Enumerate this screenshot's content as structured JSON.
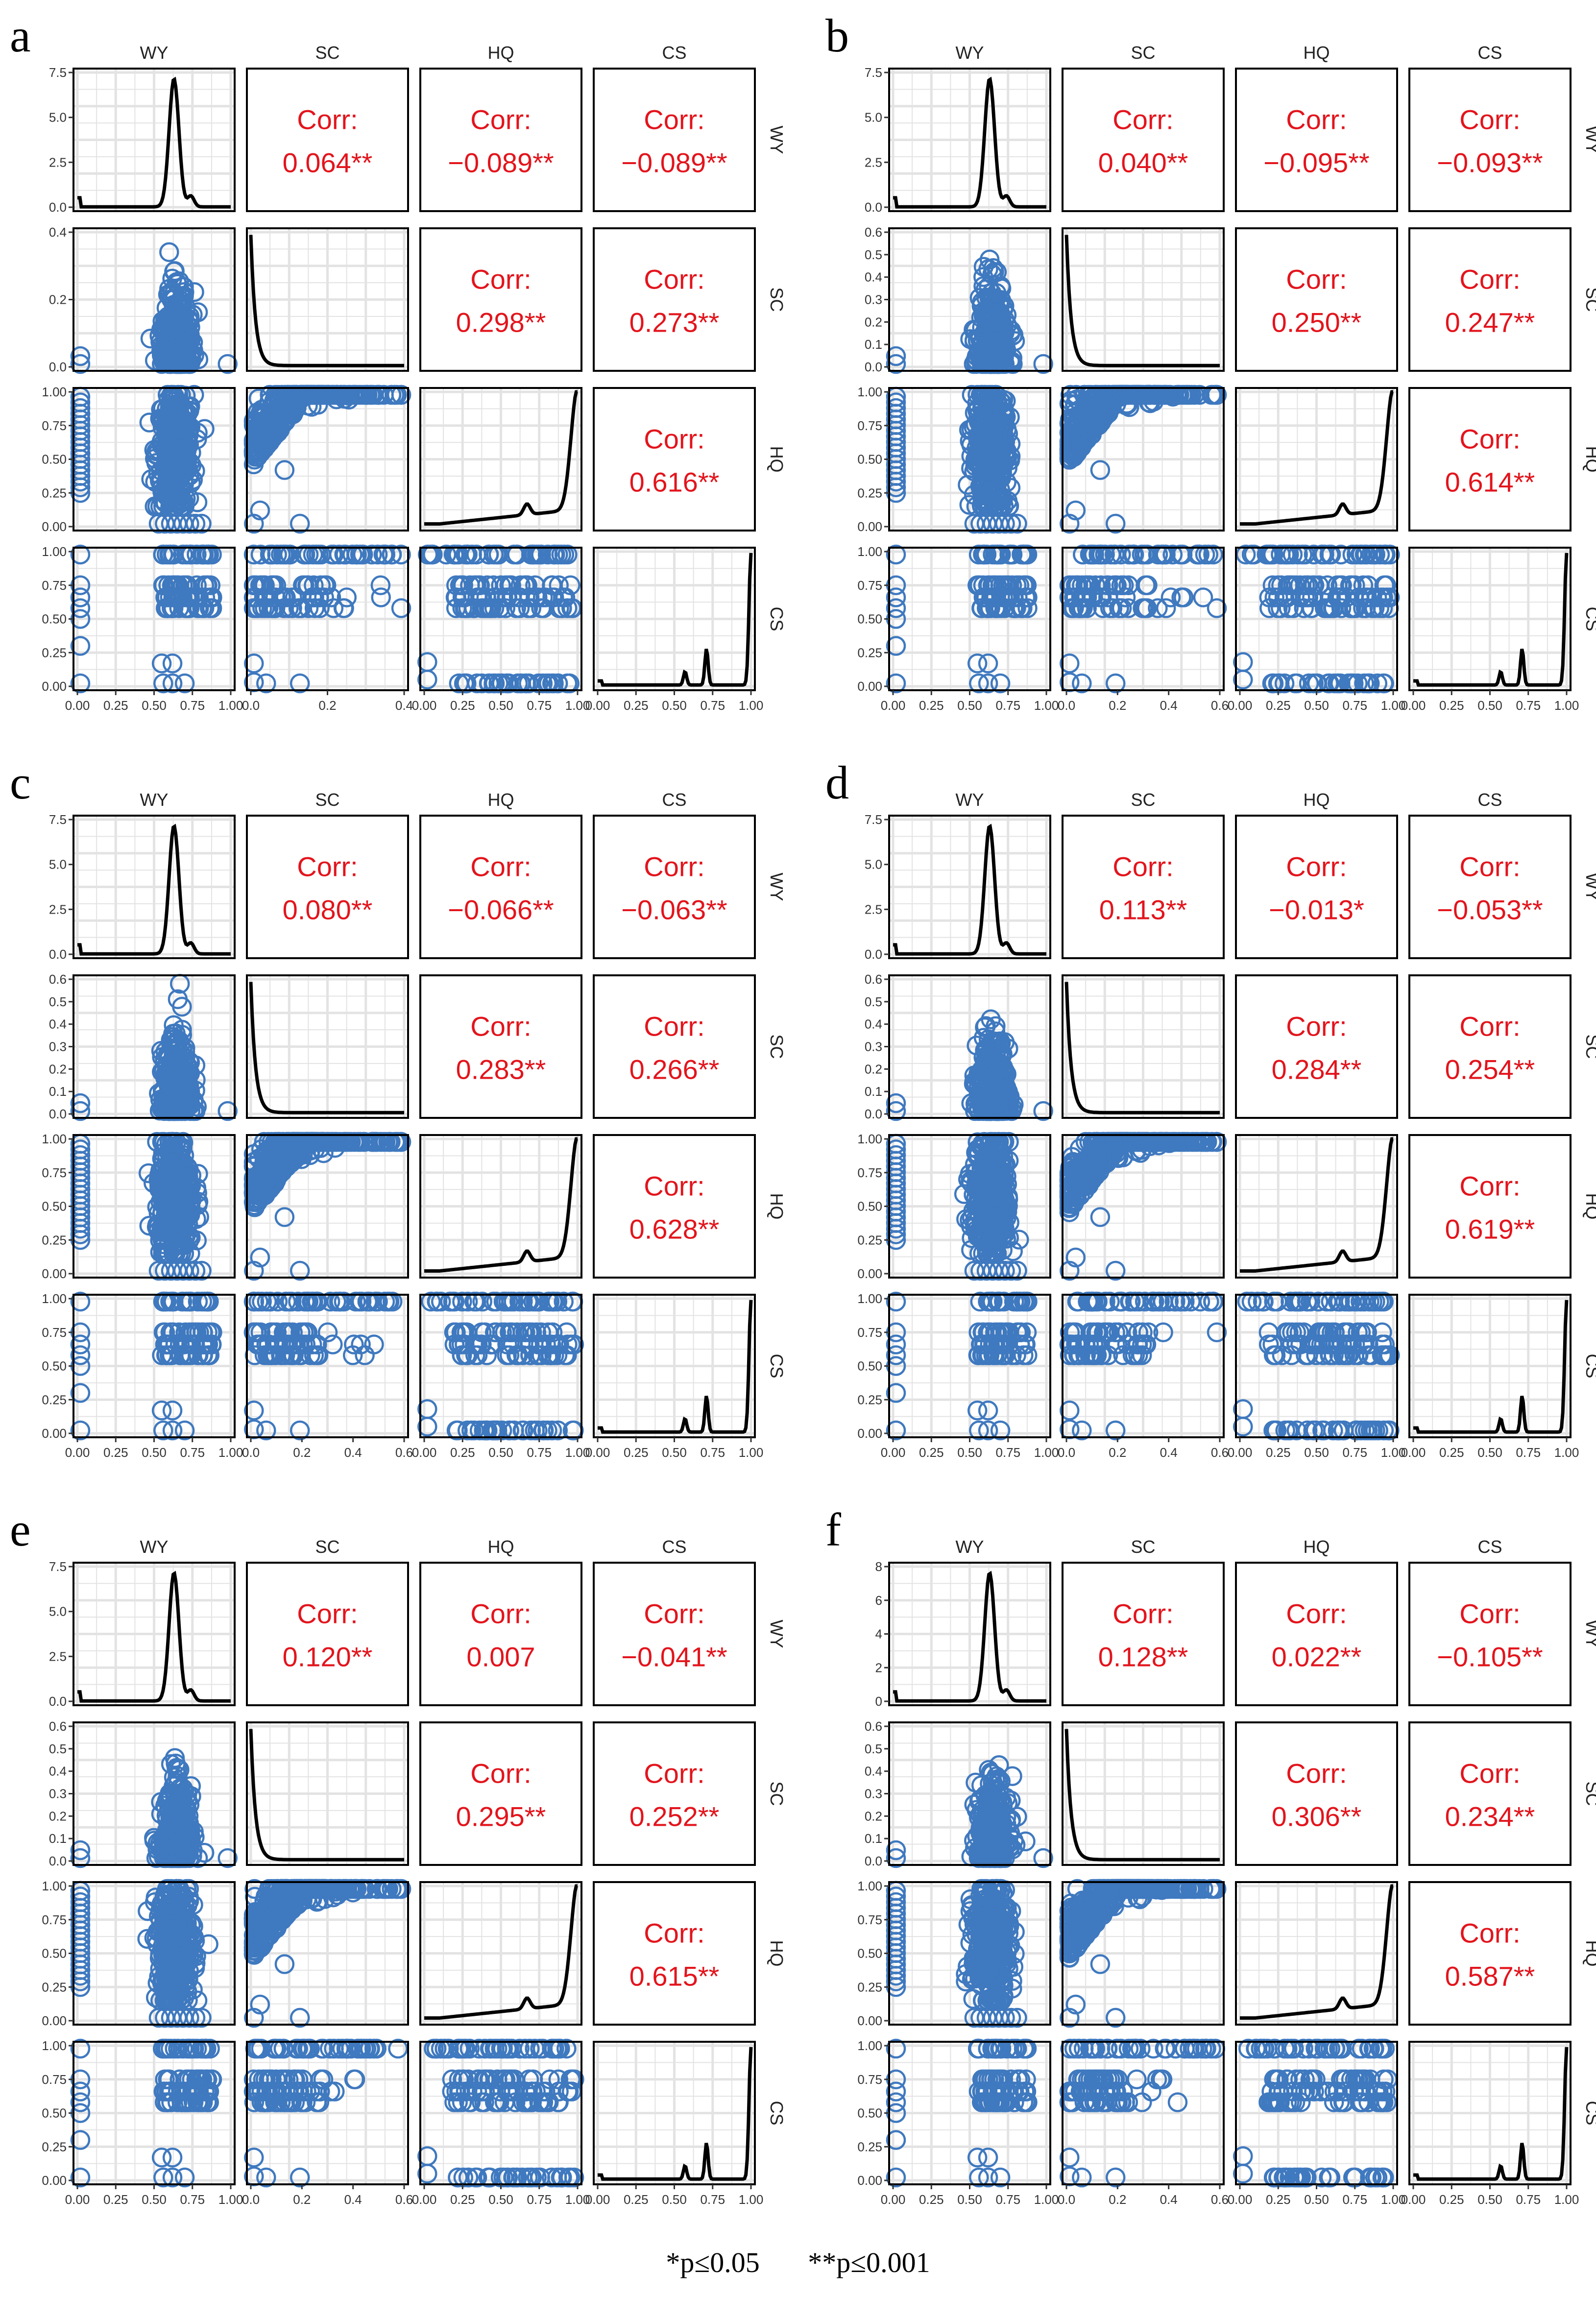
{
  "chart_data": {
    "type": "scatter",
    "variables": [
      "WY",
      "SC",
      "HQ",
      "CS"
    ],
    "corr_label": "Corr:",
    "colors": {
      "points": "#3F79BF",
      "density": "#000000",
      "corr_text": "#E3141C",
      "grid": "#E3E3E3"
    },
    "grid": true,
    "axis_ticks": {
      "WY_y": [
        "0.0",
        "2.5",
        "5.0",
        "7.5"
      ],
      "WY_y_f": [
        "0",
        "2",
        "4",
        "6",
        "8"
      ],
      "unit_y": [
        "0.00",
        "0.25",
        "0.50",
        "0.75",
        "1.00"
      ],
      "unit_x": [
        "0.00",
        "0.25",
        "0.50",
        "0.75",
        "1.00"
      ]
    },
    "panels": [
      {
        "id": "a",
        "sc_y": [
          "0.0",
          "0.2",
          "0.4"
        ],
        "sc_x": [
          "0.0",
          "0.2",
          "0.4"
        ],
        "corr": {
          "WY-SC": "0.064**",
          "WY-HQ": "−0.089**",
          "WY-CS": "−0.089**",
          "SC-HQ": "0.298**",
          "SC-CS": "0.273**",
          "HQ-CS": "0.616**"
        }
      },
      {
        "id": "b",
        "sc_y": [
          "0.0",
          "0.1",
          "0.2",
          "0.3",
          "0.4",
          "0.5",
          "0.6"
        ],
        "sc_x": [
          "0.0",
          "0.2",
          "0.4",
          "0.6"
        ],
        "corr": {
          "WY-SC": "0.040**",
          "WY-HQ": "−0.095**",
          "WY-CS": "−0.093**",
          "SC-HQ": "0.250**",
          "SC-CS": "0.247**",
          "HQ-CS": "0.614**"
        }
      },
      {
        "id": "c",
        "sc_y": [
          "0.0",
          "0.1",
          "0.2",
          "0.3",
          "0.4",
          "0.5",
          "0.6"
        ],
        "sc_x": [
          "0.0",
          "0.2",
          "0.4",
          "0.6"
        ],
        "corr": {
          "WY-SC": "0.080**",
          "WY-HQ": "−0.066**",
          "WY-CS": "−0.063**",
          "SC-HQ": "0.283**",
          "SC-CS": "0.266**",
          "HQ-CS": "0.628**"
        }
      },
      {
        "id": "d",
        "sc_y": [
          "0.0",
          "0.1",
          "0.2",
          "0.3",
          "0.4",
          "0.5",
          "0.6"
        ],
        "sc_x": [
          "0.0",
          "0.2",
          "0.4",
          "0.6"
        ],
        "corr": {
          "WY-SC": "0.113**",
          "WY-HQ": "−0.013*",
          "WY-CS": "−0.053**",
          "SC-HQ": "0.284**",
          "SC-CS": "0.254**",
          "HQ-CS": "0.619**"
        }
      },
      {
        "id": "e",
        "sc_y": [
          "0.0",
          "0.1",
          "0.2",
          "0.3",
          "0.4",
          "0.5",
          "0.6"
        ],
        "sc_x": [
          "0.0",
          "0.2",
          "0.4",
          "0.6"
        ],
        "corr": {
          "WY-SC": "0.120**",
          "WY-HQ": "0.007",
          "WY-CS": "−0.041**",
          "SC-HQ": "0.295**",
          "SC-CS": "0.252**",
          "HQ-CS": "0.615**"
        }
      },
      {
        "id": "f",
        "sc_y": [
          "0.0",
          "0.1",
          "0.2",
          "0.3",
          "0.4",
          "0.5",
          "0.6"
        ],
        "sc_x": [
          "0.0",
          "0.2",
          "0.4",
          "0.6"
        ],
        "corr": {
          "WY-SC": "0.128**",
          "WY-HQ": "0.022**",
          "WY-CS": "−0.105**",
          "SC-HQ": "0.306**",
          "SC-CS": "0.234**",
          "HQ-CS": "0.587**"
        }
      }
    ],
    "footnote": {
      "single": "*p≤0.05",
      "double": "**p≤0.001"
    }
  }
}
